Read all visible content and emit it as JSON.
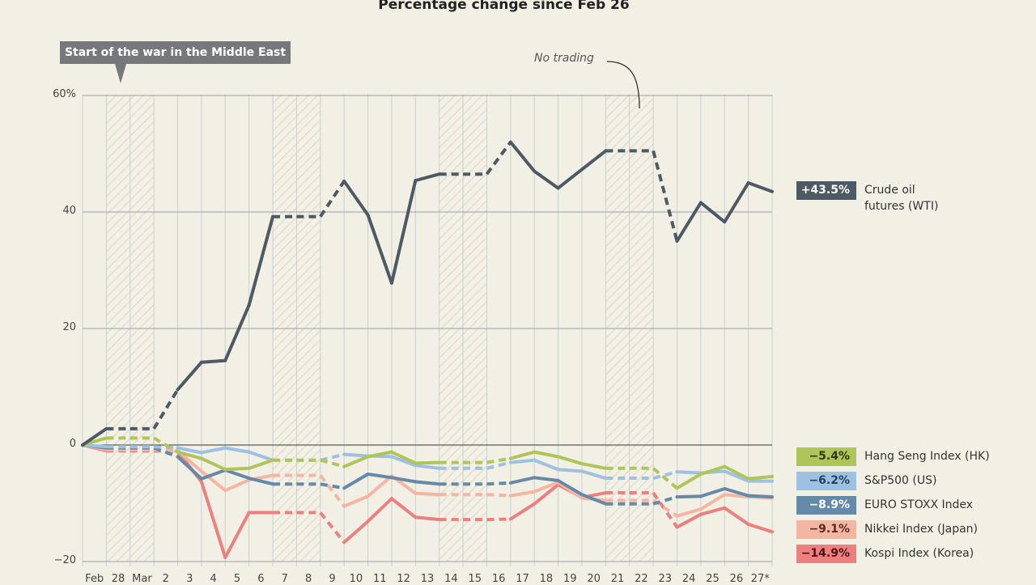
{
  "title": "Percentage change since Feb 26",
  "callout": "Start of the war in the Middle East",
  "note": "No trading",
  "y_ticks": [
    {
      "label": "60%",
      "value": 60
    },
    {
      "label": "40",
      "value": 40
    },
    {
      "label": "20",
      "value": 20
    },
    {
      "label": "0",
      "value": 0
    },
    {
      "label": "−20",
      "value": -20
    }
  ],
  "x_labels": [
    "Feb",
    "28",
    "Mar",
    "2",
    "3",
    "4",
    "5",
    "6",
    "7",
    "8",
    "9",
    "10",
    "11",
    "12",
    "13",
    "14",
    "15",
    "16",
    "17",
    "18",
    "19",
    "20",
    "21",
    "22",
    "23",
    "24",
    "25",
    "26",
    "27*"
  ],
  "legend": [
    {
      "badge": "+43.5%",
      "label": "Crude oil\nfutures (WTI)",
      "color": "#4e5a63",
      "text_color": "#ffffff"
    },
    {
      "badge": "−5.4%",
      "label": "Hang Seng Index (HK)",
      "color": "#afc55a",
      "text_color": "#2f3a10"
    },
    {
      "badge": "−6.2%",
      "label": "S&P500 (US)",
      "color": "#9ec1e1",
      "text_color": "#23405e"
    },
    {
      "badge": "−8.9%",
      "label": "EURO STOXX Index",
      "color": "#6489a9",
      "text_color": "#ffffff"
    },
    {
      "badge": "−9.1%",
      "label": "Nikkei Index (Japan)",
      "color": "#f4b6a2",
      "text_color": "#5a2a1d"
    },
    {
      "badge": "−14.9%",
      "label": "Kospi Index (Korea)",
      "color": "#ec7f7f",
      "text_color": "#4a1313"
    }
  ],
  "chart_data": {
    "type": "line",
    "title": "Percentage change since Feb 26",
    "xlabel": "",
    "ylabel": "%",
    "ylim": [
      -20,
      60
    ],
    "grid": true,
    "legend_position": "right",
    "x": [
      "Feb 26",
      "Feb 27",
      "Feb 28",
      "Mar 1",
      "Mar 2",
      "Mar 3",
      "Mar 4",
      "Mar 5",
      "Mar 6",
      "Mar 7",
      "Mar 8",
      "Mar 9",
      "Mar 10",
      "Mar 11",
      "Mar 12",
      "Mar 13",
      "Mar 14",
      "Mar 15",
      "Mar 16",
      "Mar 17",
      "Mar 18",
      "Mar 19",
      "Mar 20",
      "Mar 21",
      "Mar 22",
      "Mar 23",
      "Mar 24",
      "Mar 25",
      "Mar 26",
      "Mar 27*"
    ],
    "no_trading_ranges": [
      [
        2,
        3
      ],
      [
        9,
        10
      ],
      [
        16,
        17
      ],
      [
        23,
        24
      ]
    ],
    "annotations": [
      "Start of the war in the Middle East (Feb 28)",
      "No trading (weekends, dashed segments)"
    ],
    "series": [
      {
        "name": "Crude oil futures (WTI)",
        "color": "#4e5a63",
        "final": "+43.5%",
        "values": [
          0,
          2.8,
          2.8,
          2.8,
          9.5,
          14.2,
          14.5,
          24,
          39.2,
          39.2,
          39.2,
          45.3,
          39.5,
          27.8,
          45.4,
          46.5,
          46.5,
          46.5,
          52,
          47,
          44.1,
          47.3,
          50.5,
          50.5,
          50.5,
          35,
          41.6,
          38.3,
          45,
          43.5
        ]
      },
      {
        "name": "Hang Seng Index (HK)",
        "color": "#afc55a",
        "final": "-5.4%",
        "values": [
          0,
          1.2,
          1.2,
          1.2,
          -1.2,
          -2.3,
          -4.2,
          -4,
          -2.6,
          -2.6,
          -2.6,
          -3.7,
          -2,
          -1.2,
          -3.1,
          -3,
          -3,
          -3,
          -2.3,
          -1.2,
          -2,
          -3.2,
          -4,
          -4,
          -4,
          -7.4,
          -5,
          -3.7,
          -5.8,
          -5.4
        ]
      },
      {
        "name": "S&P500 (US)",
        "color": "#9ec1e1",
        "final": "-6.2%",
        "values": [
          0,
          -0.3,
          -0.3,
          -0.3,
          -0.5,
          -1.3,
          -0.5,
          -1.2,
          -2.6,
          -2.6,
          -2.6,
          -1.6,
          -1.9,
          -2,
          -3.5,
          -4,
          -4,
          -4,
          -3,
          -2.6,
          -4.2,
          -4.5,
          -5.7,
          -5.7,
          -5.7,
          -4.6,
          -4.8,
          -4.5,
          -6.2,
          -6.2
        ]
      },
      {
        "name": "EURO STOXX Index",
        "color": "#6489a9",
        "final": "-8.9%",
        "values": [
          0,
          -0.5,
          -0.5,
          -0.5,
          -2,
          -5.8,
          -4.3,
          -5.7,
          -6.7,
          -6.7,
          -6.7,
          -7.4,
          -5,
          -5.6,
          -6.3,
          -6.7,
          -6.7,
          -6.7,
          -6.5,
          -5.6,
          -6.1,
          -8.5,
          -10.1,
          -10.1,
          -10.1,
          -8.9,
          -8.8,
          -7.5,
          -8.7,
          -8.9
        ]
      },
      {
        "name": "Nikkei Index (Japan)",
        "color": "#f4b6a2",
        "final": "-9.1%",
        "values": [
          0,
          -0.8,
          -0.8,
          -0.8,
          -1,
          -4.5,
          -7.8,
          -6,
          -5.2,
          -5.2,
          -5.2,
          -10.5,
          -8.8,
          -5.3,
          -8.3,
          -8.5,
          -8.5,
          -8.5,
          -8.7,
          -8,
          -6.4,
          -9.1,
          -9.5,
          -9.5,
          -9.5,
          -12.2,
          -11,
          -8.5,
          -8.9,
          -9.1
        ]
      },
      {
        "name": "Kospi Index (Korea)",
        "color": "#ec7f7f",
        "final": "-14.9%",
        "values": [
          0,
          -1,
          -1,
          -1,
          -1.1,
          -6.3,
          -19.3,
          -11.6,
          -11.6,
          -11.6,
          -11.6,
          -16.7,
          -13.1,
          -9.2,
          -12.4,
          -12.8,
          -12.8,
          -12.8,
          -12.7,
          -10.1,
          -6.8,
          -9,
          -8.2,
          -8.2,
          -8.2,
          -14.1,
          -11.9,
          -10.8,
          -13.6,
          -14.9
        ]
      }
    ]
  }
}
